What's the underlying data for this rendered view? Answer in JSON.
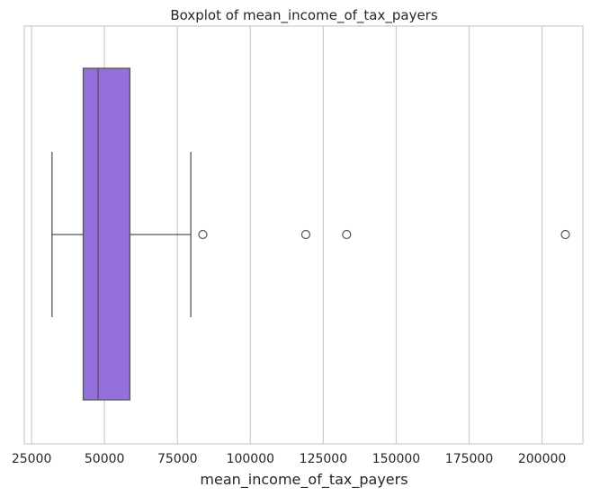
{
  "chart_data": {
    "type": "boxplot",
    "title": "Boxplot of mean_income_of_tax_payers",
    "xlabel": "mean_income_of_tax_payers",
    "ylabel": "",
    "orientation": "horizontal",
    "xlim": [
      22500,
      214000
    ],
    "xticks": [
      25000,
      50000,
      75000,
      100000,
      125000,
      150000,
      175000,
      200000
    ],
    "xtick_labels": [
      "25000",
      "50000",
      "75000",
      "100000",
      "125000",
      "150000",
      "175000",
      "200000"
    ],
    "grid": "vertical",
    "box": {
      "whisker_low": 32000,
      "q1": 42700,
      "median": 47800,
      "q3": 58700,
      "whisker_high": 79600,
      "outliers": [
        83700,
        119000,
        133000,
        208000
      ],
      "color": "#9370DB"
    }
  }
}
